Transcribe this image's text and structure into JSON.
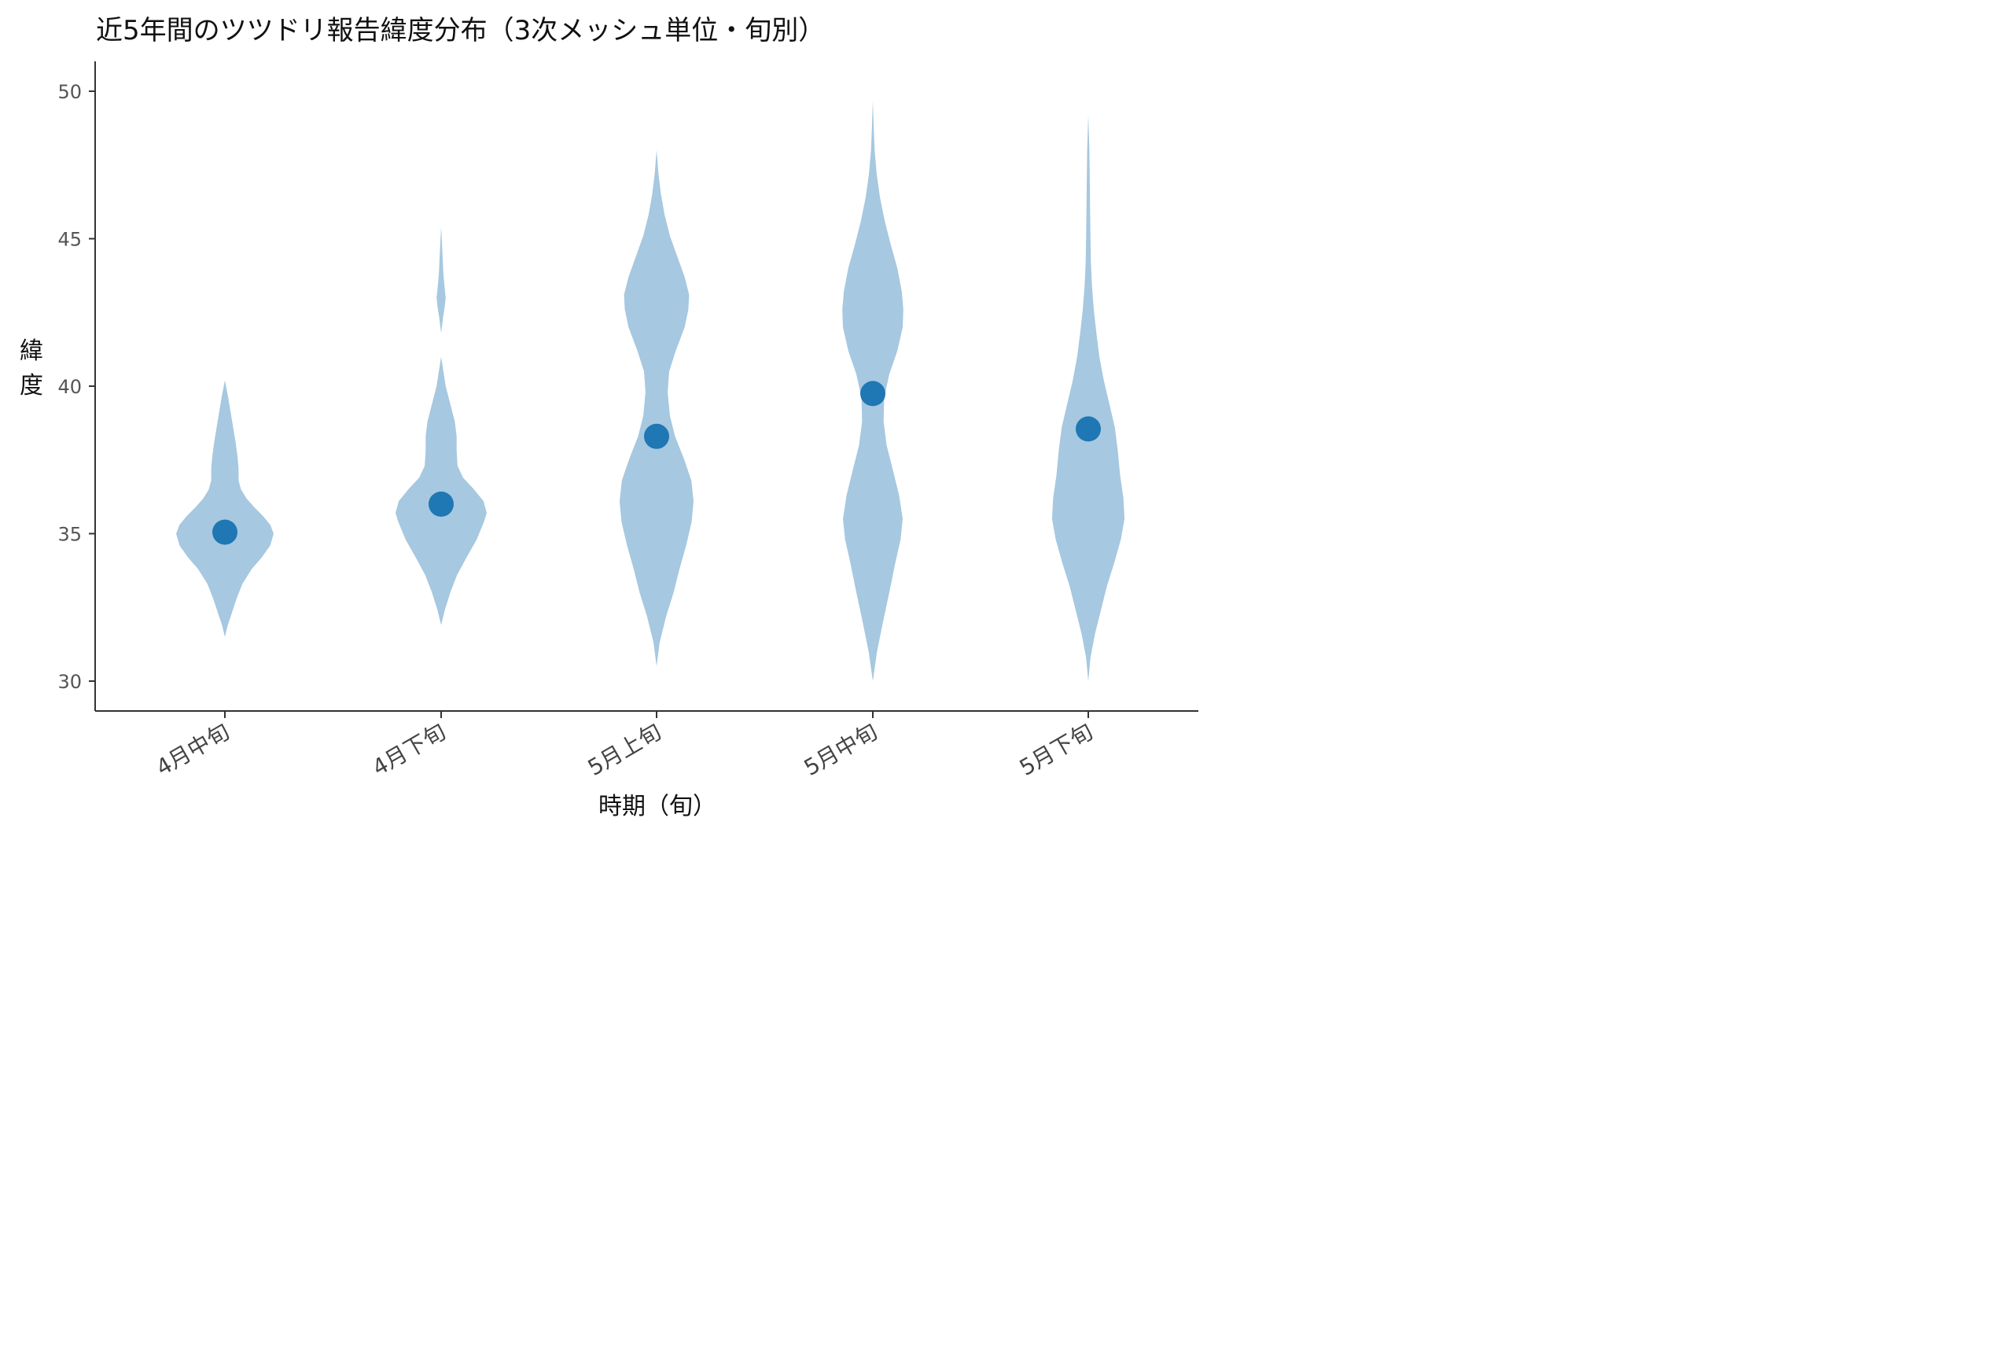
{
  "chart_data": {
    "type": "violin",
    "title": "近5年間のツツドリ報告緯度分布（3次メッシュ単位・旬別）",
    "xlabel": "時期（旬）",
    "ylabel": "緯度",
    "ylim": [
      29,
      51
    ],
    "yticks": [
      30,
      35,
      40,
      45,
      50
    ],
    "grid": false,
    "legend": "none",
    "colors": {
      "violin": "#a6c8e0",
      "mean_point": "#1f77b4",
      "axis": "#333333"
    },
    "categories": [
      "4月中旬",
      "4月下旬",
      "5月上旬",
      "5月中旬",
      "5月下旬"
    ],
    "means": [
      35.05,
      36.0,
      38.3,
      39.75,
      38.55
    ],
    "violins": [
      {
        "category": "4月中旬",
        "min": 31.5,
        "max": 40.2,
        "max_density_halfwidth": 62,
        "profile": [
          [
            31.5,
            0.0
          ],
          [
            31.9,
            0.06
          ],
          [
            32.3,
            0.14
          ],
          [
            32.8,
            0.24
          ],
          [
            33.3,
            0.36
          ],
          [
            33.8,
            0.55
          ],
          [
            34.2,
            0.76
          ],
          [
            34.6,
            0.93
          ],
          [
            35.0,
            1.0
          ],
          [
            35.3,
            0.93
          ],
          [
            35.6,
            0.78
          ],
          [
            35.9,
            0.6
          ],
          [
            36.2,
            0.44
          ],
          [
            36.5,
            0.33
          ],
          [
            36.8,
            0.28
          ],
          [
            37.2,
            0.28
          ],
          [
            37.6,
            0.26
          ],
          [
            38.1,
            0.22
          ],
          [
            38.6,
            0.17
          ],
          [
            39.1,
            0.12
          ],
          [
            39.6,
            0.07
          ],
          [
            40.2,
            0.0
          ]
        ]
      },
      {
        "category": "4月下旬",
        "min": 31.9,
        "max": 45.4,
        "max_density_halfwidth": 58,
        "profile": [
          [
            31.9,
            0.0
          ],
          [
            32.4,
            0.08
          ],
          [
            33.0,
            0.2
          ],
          [
            33.6,
            0.35
          ],
          [
            34.2,
            0.56
          ],
          [
            34.8,
            0.78
          ],
          [
            35.4,
            0.94
          ],
          [
            35.7,
            1.0
          ],
          [
            36.1,
            0.93
          ],
          [
            36.5,
            0.72
          ],
          [
            36.9,
            0.48
          ],
          [
            37.3,
            0.36
          ],
          [
            37.8,
            0.34
          ],
          [
            38.3,
            0.34
          ],
          [
            38.8,
            0.3
          ],
          [
            39.4,
            0.2
          ],
          [
            40.0,
            0.1
          ],
          [
            40.5,
            0.05
          ],
          [
            41.0,
            0.0
          ],
          [
            41.8,
            0.0
          ],
          [
            42.3,
            0.04
          ],
          [
            42.7,
            0.08
          ],
          [
            43.0,
            0.1
          ],
          [
            43.3,
            0.08
          ],
          [
            43.8,
            0.05
          ],
          [
            44.5,
            0.03
          ],
          [
            45.4,
            0.0
          ]
        ]
      },
      {
        "category": "5月上旬",
        "min": 30.5,
        "max": 48.0,
        "max_density_halfwidth": 47,
        "profile": [
          [
            30.5,
            0.0
          ],
          [
            31.3,
            0.08
          ],
          [
            32.2,
            0.26
          ],
          [
            33.0,
            0.46
          ],
          [
            33.8,
            0.62
          ],
          [
            34.6,
            0.8
          ],
          [
            35.4,
            0.95
          ],
          [
            36.1,
            1.0
          ],
          [
            36.8,
            0.94
          ],
          [
            37.5,
            0.75
          ],
          [
            38.3,
            0.5
          ],
          [
            39.0,
            0.36
          ],
          [
            39.8,
            0.3
          ],
          [
            40.5,
            0.34
          ],
          [
            41.2,
            0.52
          ],
          [
            42.0,
            0.76
          ],
          [
            42.6,
            0.86
          ],
          [
            43.1,
            0.88
          ],
          [
            43.7,
            0.76
          ],
          [
            44.4,
            0.56
          ],
          [
            45.1,
            0.36
          ],
          [
            45.8,
            0.22
          ],
          [
            46.5,
            0.12
          ],
          [
            47.2,
            0.05
          ],
          [
            48.0,
            0.0
          ]
        ]
      },
      {
        "category": "5月中旬",
        "min": 30.0,
        "max": 49.7,
        "max_density_halfwidth": 38,
        "profile": [
          [
            30.0,
            0.0
          ],
          [
            31.0,
            0.14
          ],
          [
            32.0,
            0.34
          ],
          [
            33.0,
            0.55
          ],
          [
            34.0,
            0.75
          ],
          [
            34.8,
            0.93
          ],
          [
            35.5,
            1.0
          ],
          [
            36.3,
            0.88
          ],
          [
            37.2,
            0.66
          ],
          [
            38.0,
            0.46
          ],
          [
            38.8,
            0.36
          ],
          [
            39.6,
            0.38
          ],
          [
            40.4,
            0.55
          ],
          [
            41.2,
            0.82
          ],
          [
            42.0,
            1.0
          ],
          [
            42.6,
            1.02
          ],
          [
            43.2,
            0.97
          ],
          [
            44.0,
            0.82
          ],
          [
            44.8,
            0.6
          ],
          [
            45.6,
            0.4
          ],
          [
            46.4,
            0.24
          ],
          [
            47.2,
            0.13
          ],
          [
            48.0,
            0.06
          ],
          [
            48.8,
            0.03
          ],
          [
            49.7,
            0.0
          ]
        ]
      },
      {
        "category": "5月下旬",
        "min": 30.0,
        "max": 49.2,
        "max_density_halfwidth": 47,
        "profile": [
          [
            30.0,
            0.0
          ],
          [
            30.8,
            0.06
          ],
          [
            31.6,
            0.18
          ],
          [
            32.4,
            0.34
          ],
          [
            33.2,
            0.5
          ],
          [
            34.0,
            0.7
          ],
          [
            34.8,
            0.88
          ],
          [
            35.5,
            0.98
          ],
          [
            36.2,
            0.95
          ],
          [
            37.0,
            0.86
          ],
          [
            37.8,
            0.8
          ],
          [
            38.6,
            0.72
          ],
          [
            39.4,
            0.57
          ],
          [
            40.2,
            0.42
          ],
          [
            41.0,
            0.3
          ],
          [
            41.8,
            0.22
          ],
          [
            42.6,
            0.15
          ],
          [
            43.4,
            0.1
          ],
          [
            44.2,
            0.07
          ],
          [
            45.0,
            0.06
          ],
          [
            46.0,
            0.05
          ],
          [
            47.0,
            0.04
          ],
          [
            48.0,
            0.03
          ],
          [
            49.2,
            0.0
          ]
        ]
      }
    ]
  }
}
